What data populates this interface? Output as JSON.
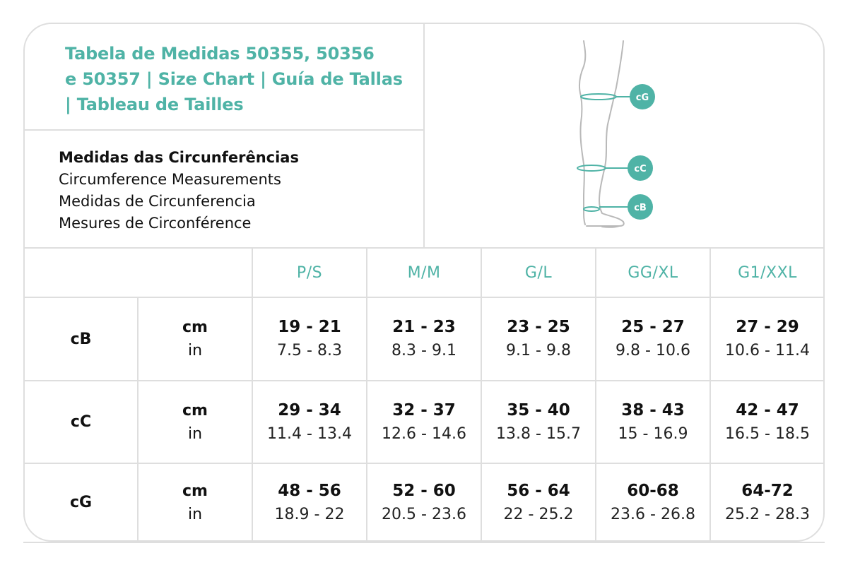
{
  "title_lines": [
    "Tabela de Medidas 50355, 50356",
    "e 50357 | Size Chart | Guía de Tallas",
    "| Tableau de Tailles"
  ],
  "measurements": {
    "heading": "Medidas das Circunferências",
    "lines": [
      "Circumference Measurements",
      "Medidas de Circunferencia",
      "Mesures de Circonférence"
    ]
  },
  "diagram": {
    "markers": [
      "cG",
      "cC",
      "cB"
    ],
    "accent_color": "#4fb3a6",
    "outline_color": "#b9b9b9"
  },
  "sizes": [
    "P/S",
    "M/M",
    "G/L",
    "GG/XL",
    "G1/XXL"
  ],
  "units": {
    "cm": "cm",
    "in": "in"
  },
  "rows": [
    {
      "label": "cB",
      "cm": [
        "19 - 21",
        "21 - 23",
        "23 - 25",
        "25 - 27",
        "27 - 29"
      ],
      "in": [
        "7.5 - 8.3",
        "8.3 - 9.1",
        "9.1 - 9.8",
        "9.8 - 10.6",
        "10.6 - 11.4"
      ]
    },
    {
      "label": "cC",
      "cm": [
        "29 - 34",
        "32 - 37",
        "35 - 40",
        "38 - 43",
        "42 - 47"
      ],
      "in": [
        "11.4 - 13.4",
        "12.6 - 14.6",
        "13.8 - 15.7",
        "15 - 16.9",
        "16.5 - 18.5"
      ]
    },
    {
      "label": "cG",
      "cm": [
        "48 - 56",
        "52 - 60",
        "56 - 64",
        "60-68",
        "64-72"
      ],
      "in": [
        "18.9 - 22",
        "20.5 - 23.6",
        "22 - 25.2",
        "23.6 - 26.8",
        "25.2 - 28.3"
      ]
    }
  ]
}
